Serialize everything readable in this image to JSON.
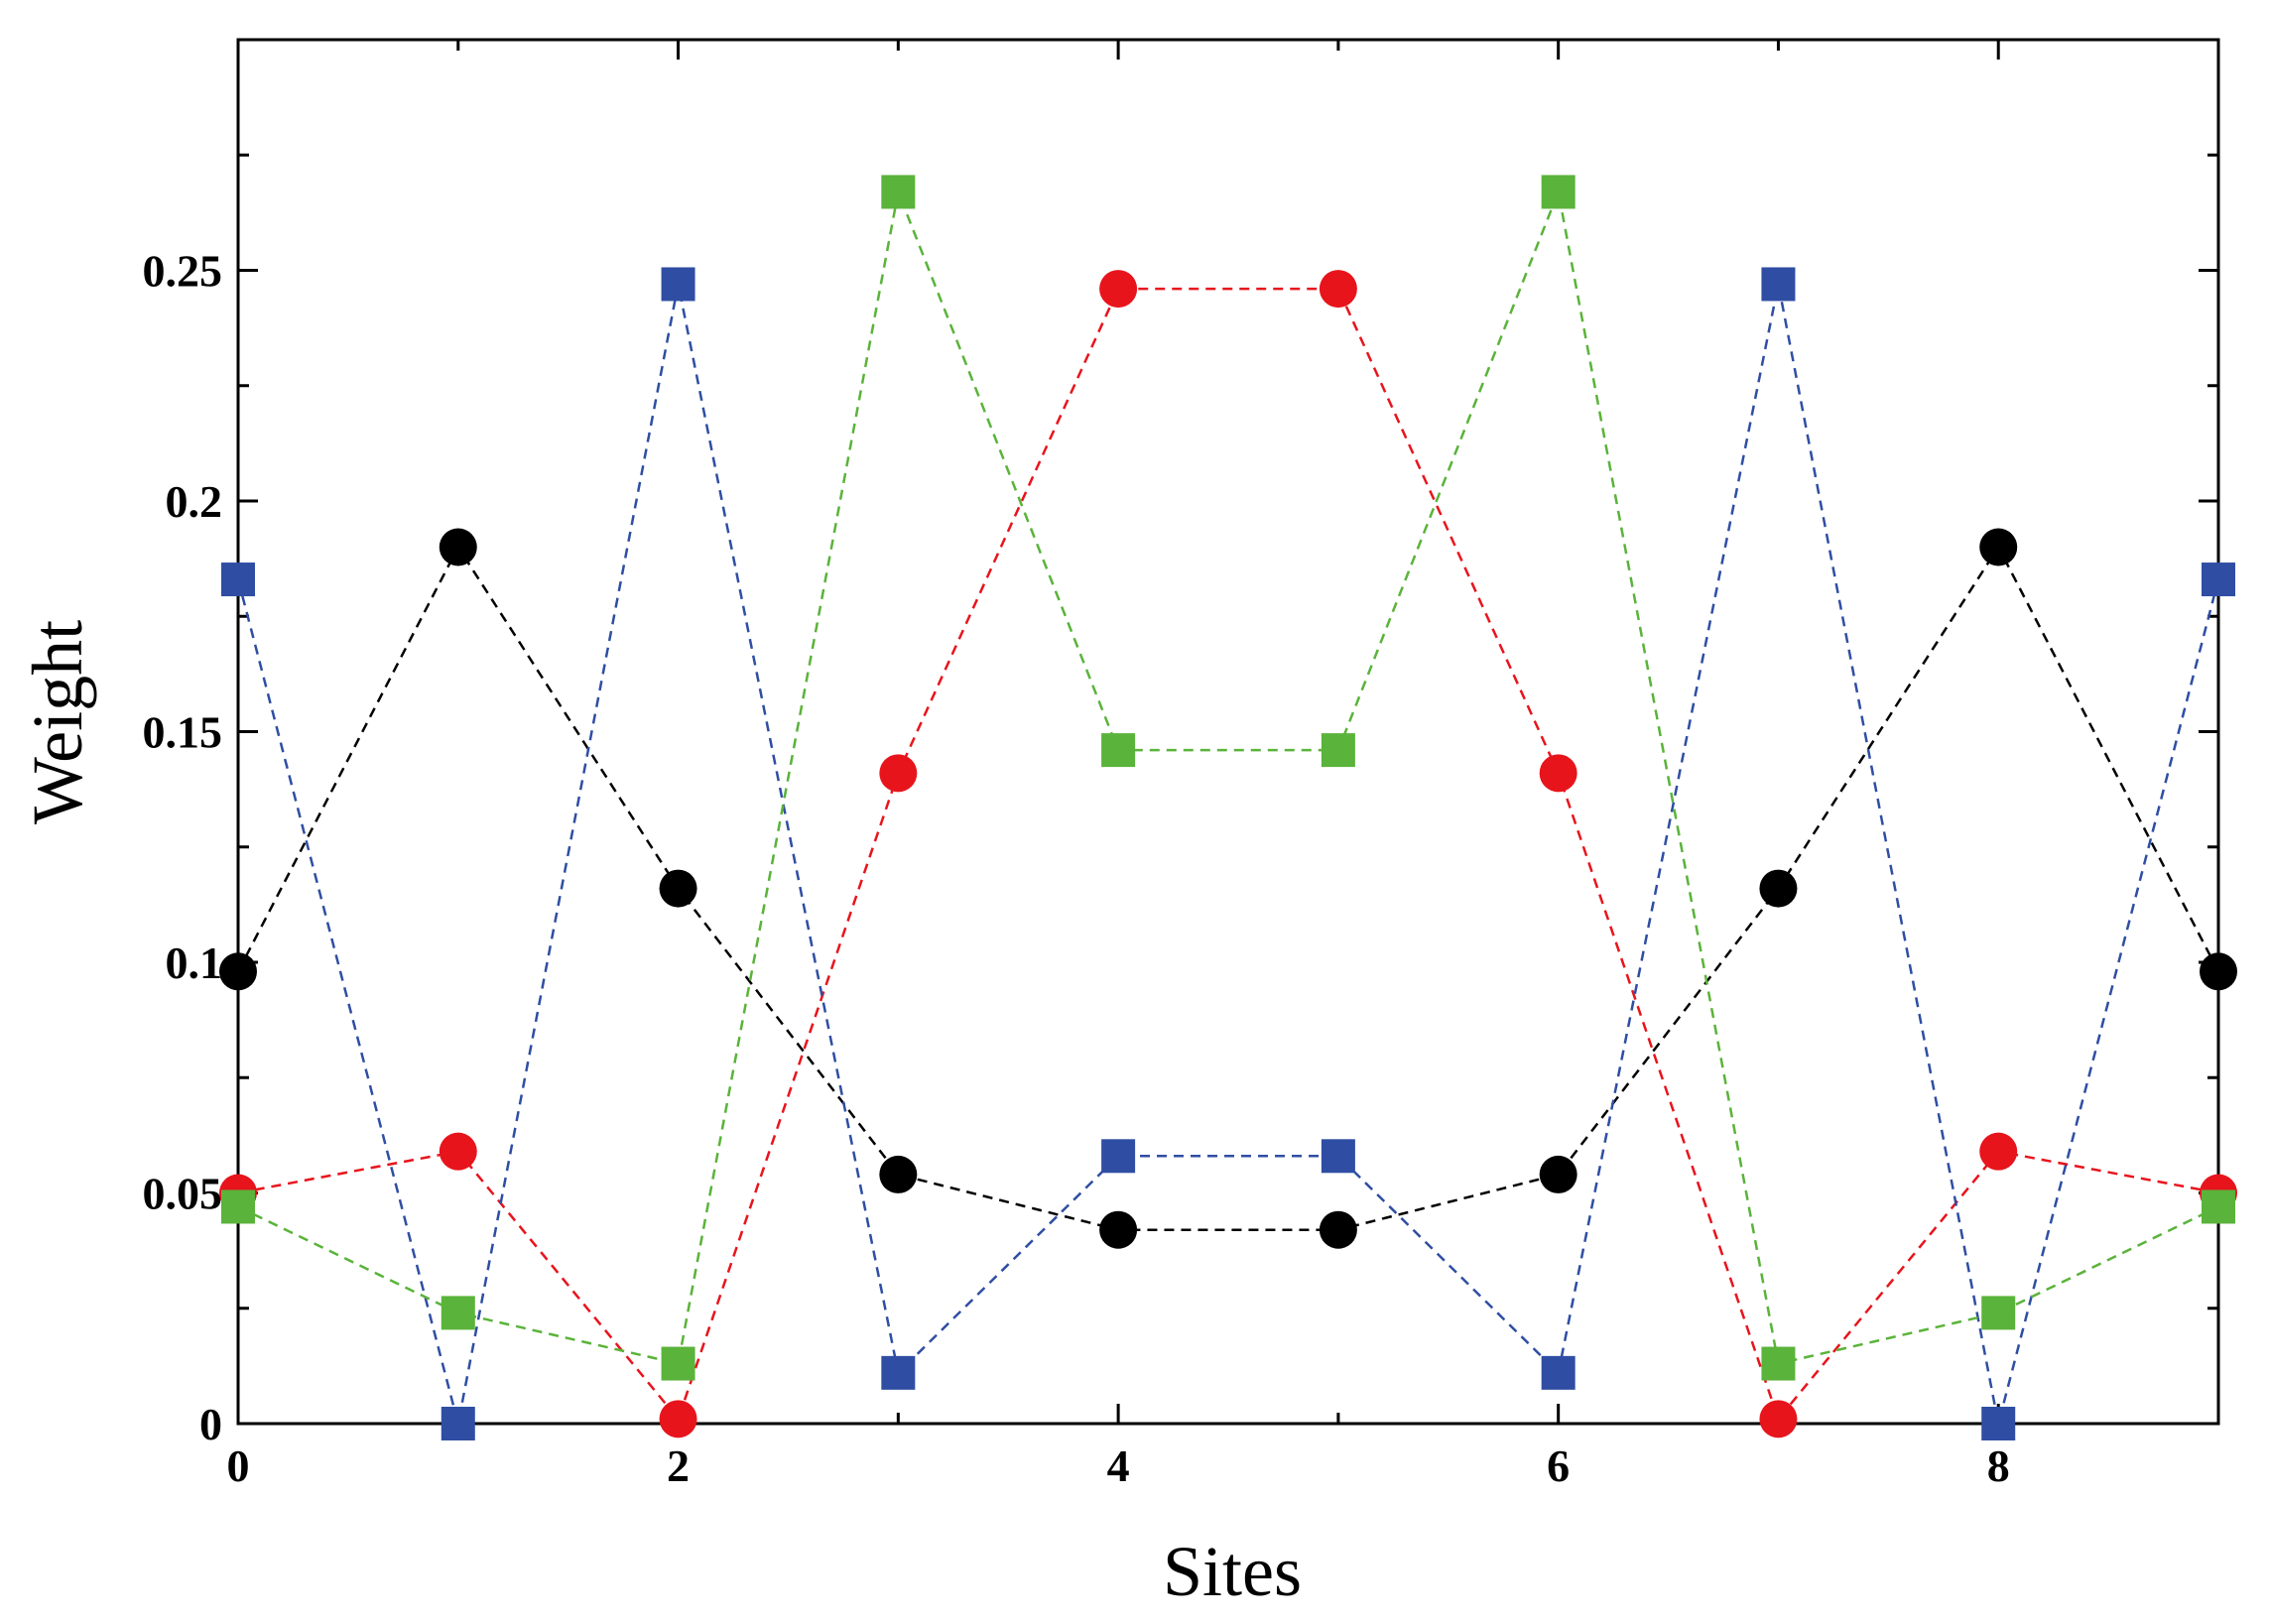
{
  "chart_data": {
    "type": "line",
    "xlabel": "Sites",
    "ylabel": "Weight",
    "xlim": [
      0,
      9
    ],
    "ylim": [
      0,
      0.3
    ],
    "x_ticks": [
      {
        "value": 0,
        "label": "0"
      },
      {
        "value": 2,
        "label": "2"
      },
      {
        "value": 4,
        "label": "4"
      },
      {
        "value": 6,
        "label": "6"
      },
      {
        "value": 8,
        "label": "8"
      }
    ],
    "y_ticks": [
      {
        "value": 0,
        "label": "0"
      },
      {
        "value": 0.05,
        "label": "0.05"
      },
      {
        "value": 0.1,
        "label": "0.1"
      },
      {
        "value": 0.15,
        "label": "0.15"
      },
      {
        "value": 0.2,
        "label": "0.2"
      },
      {
        "value": 0.25,
        "label": "0.25"
      }
    ],
    "x_minor_ticks": [
      1,
      3,
      5,
      7,
      9
    ],
    "y_minor_ticks": [
      0.025,
      0.075,
      0.125,
      0.175,
      0.225,
      0.275
    ],
    "grid": false,
    "x": [
      0,
      1,
      2,
      3,
      4,
      5,
      6,
      7,
      8,
      9
    ],
    "series": [
      {
        "color": "#000000",
        "marker": "circle",
        "values": [
          0.098,
          0.19,
          0.116,
          0.054,
          0.042,
          0.042,
          0.054,
          0.116,
          0.19,
          0.098
        ]
      },
      {
        "color": "#e8141c",
        "marker": "circle",
        "values": [
          0.05,
          0.059,
          0.001,
          0.141,
          0.246,
          0.246,
          0.141,
          0.001,
          0.059,
          0.05
        ]
      },
      {
        "color": "#2f4ea3",
        "marker": "square",
        "values": [
          0.183,
          0.0,
          0.247,
          0.011,
          0.058,
          0.058,
          0.011,
          0.247,
          0.0,
          0.183
        ]
      },
      {
        "color": "#5ab33a",
        "marker": "square",
        "values": [
          0.047,
          0.024,
          0.013,
          0.267,
          0.146,
          0.146,
          0.267,
          0.013,
          0.024,
          0.047
        ]
      }
    ]
  }
}
